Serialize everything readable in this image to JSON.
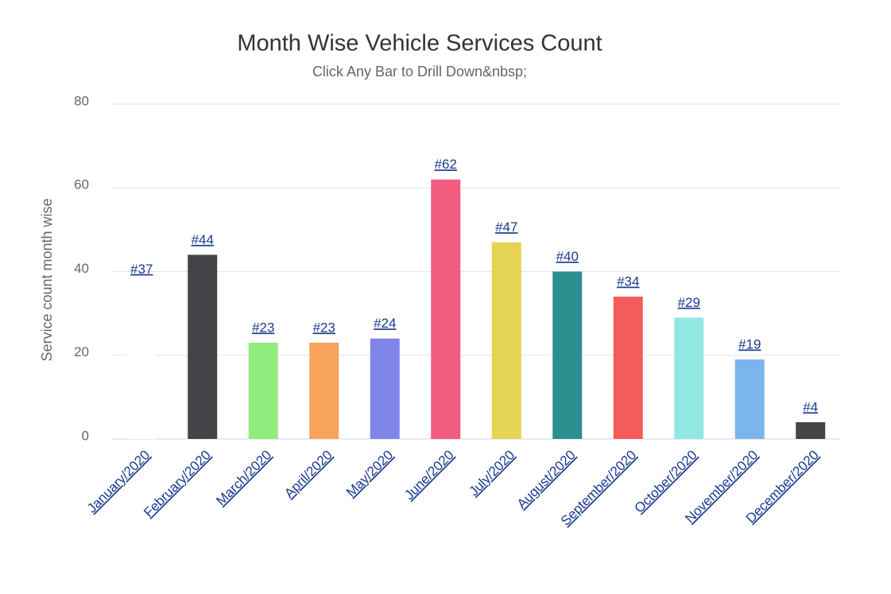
{
  "chart_data": {
    "type": "bar",
    "title": "Month Wise Vehicle Services Count",
    "subtitle": "Click Any Bar to Drill Down&nbsp;",
    "y_label": "Service count month wise",
    "categories": [
      "January/2020",
      "February/2020",
      "March/2020",
      "April/2020",
      "May/2020",
      "June/2020",
      "July/2020",
      "August/2020",
      "September/2020",
      "October/2020",
      "November/2020",
      "December/2020"
    ],
    "values": [
      37,
      44,
      23,
      23,
      24,
      62,
      47,
      40,
      34,
      29,
      19,
      4
    ],
    "value_labels": [
      "#37",
      "#44",
      "#23",
      "#23",
      "#24",
      "#62",
      "#47",
      "#40",
      "#34",
      "#29",
      "#19",
      "#4"
    ],
    "colors": [
      "#ffffff",
      "#434348",
      "#90ed7d",
      "#f7a35c",
      "#8085e9",
      "#f15c80",
      "#e4d354",
      "#2b908f",
      "#f45b5b",
      "#91e8e1",
      "#7cb5ec",
      "#434348"
    ],
    "ylim": [
      0,
      80
    ],
    "yticks": [
      0,
      20,
      40,
      60,
      80
    ],
    "grid": true
  }
}
